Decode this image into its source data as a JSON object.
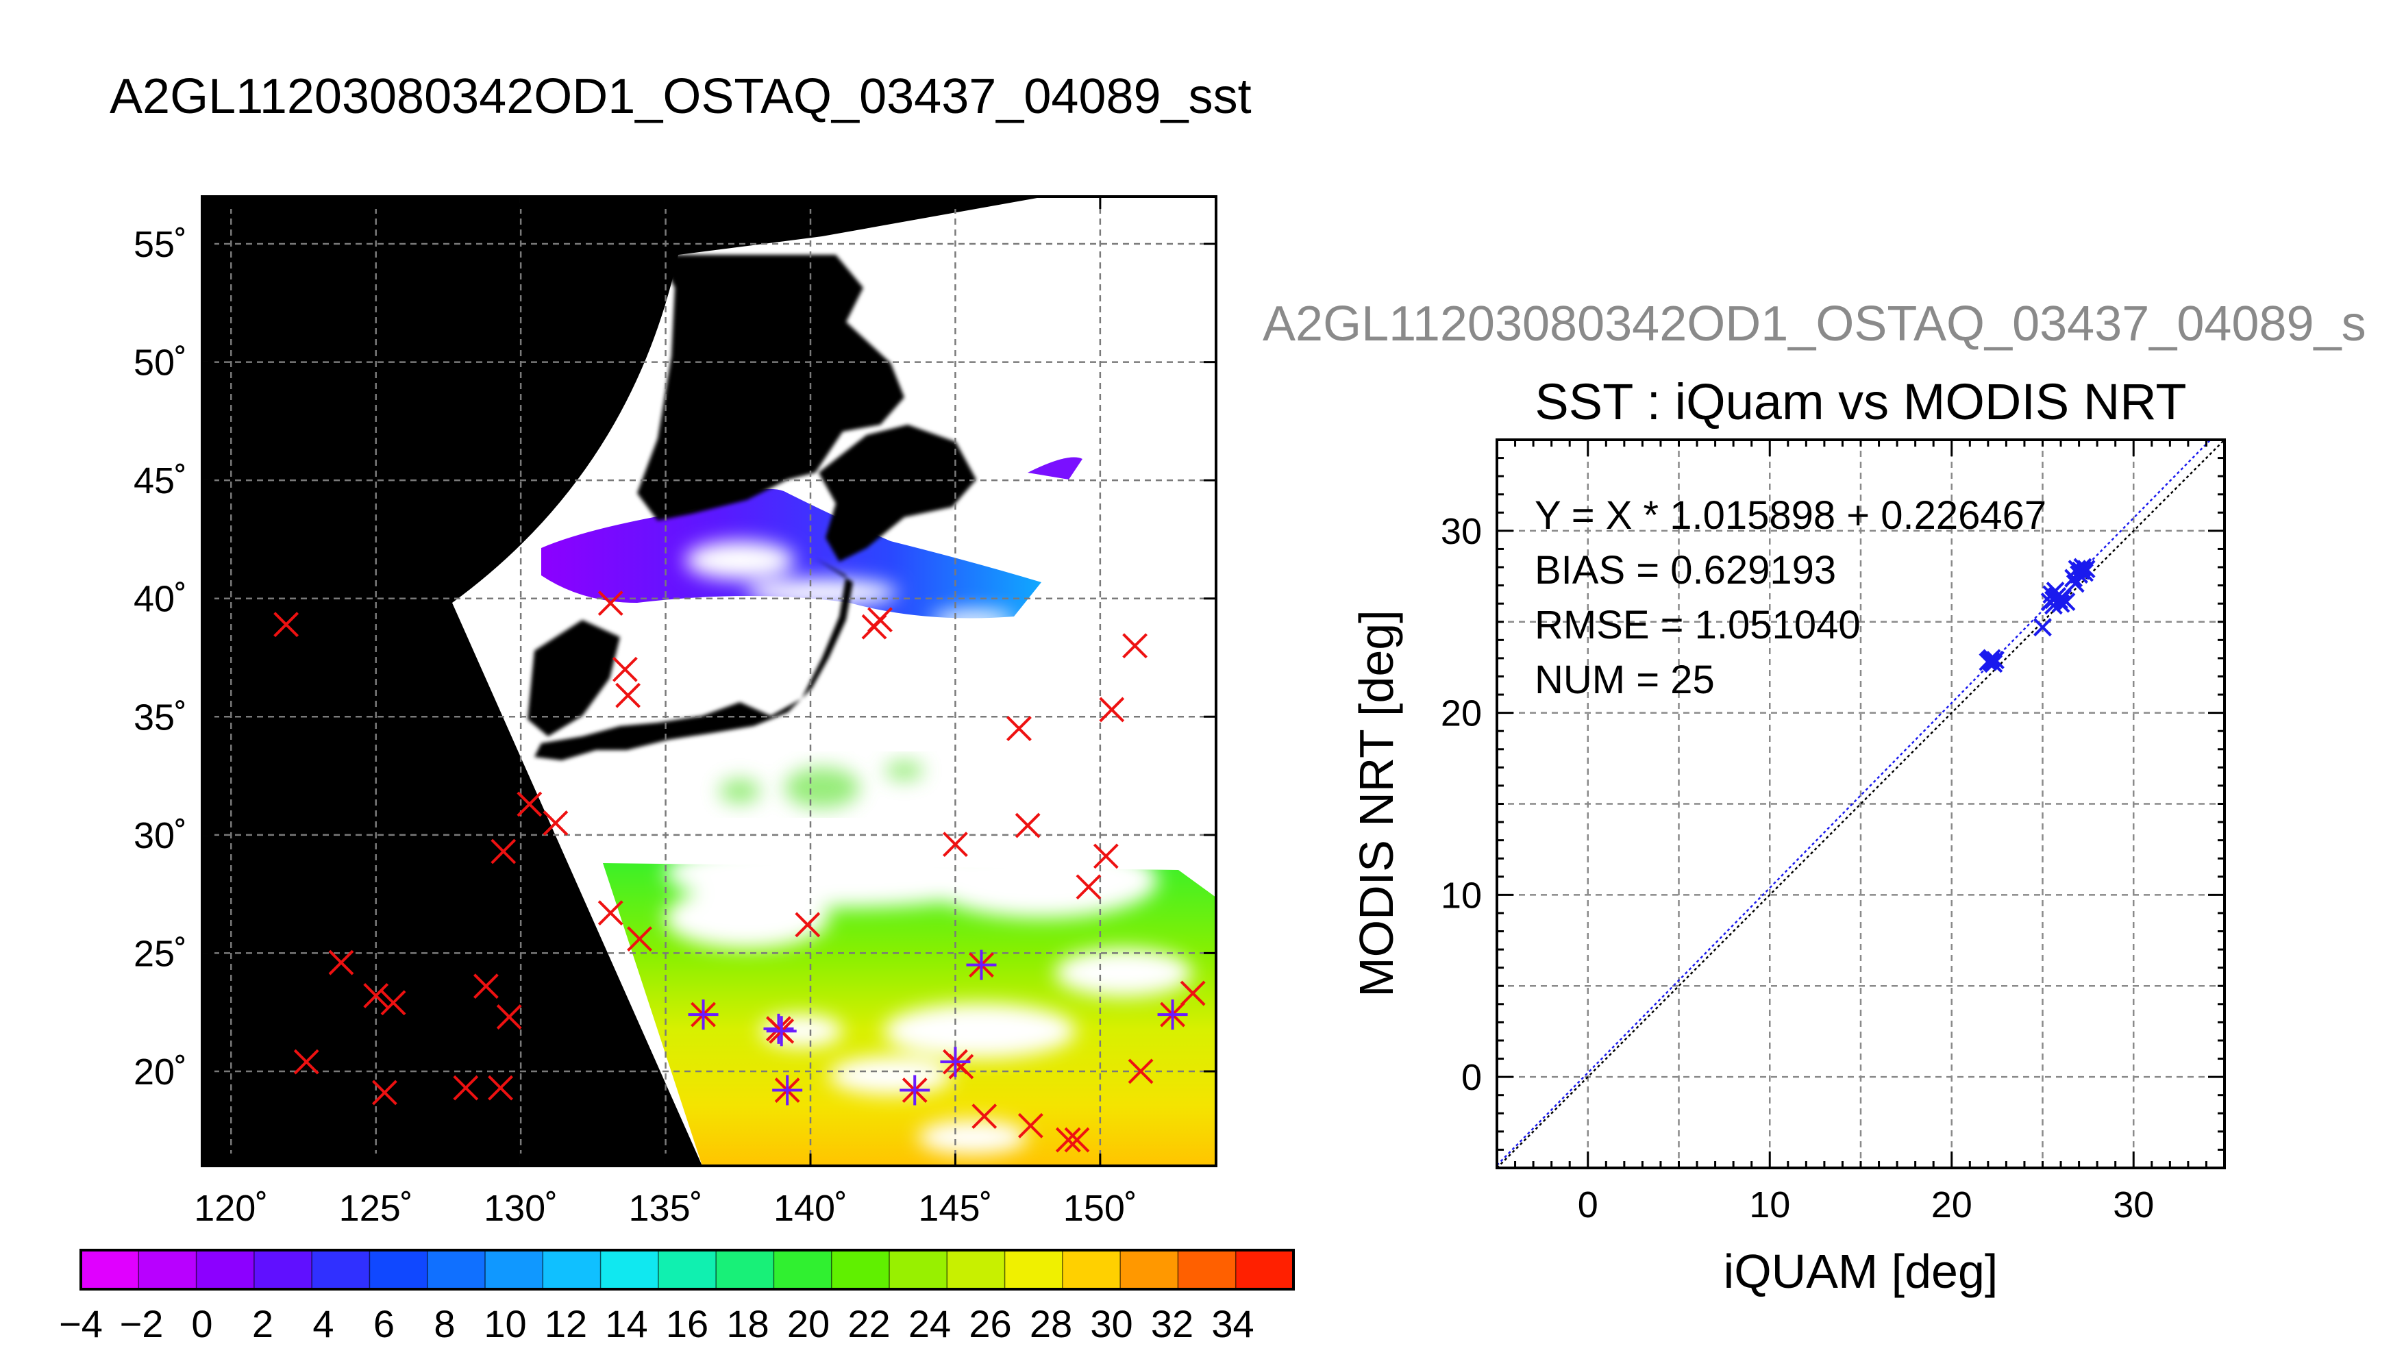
{
  "title": "A2GL11203080342OD1_OSTAQ_03437_04089_sst",
  "map": {
    "lat_ticks": [
      "55˚",
      "50˚",
      "45˚",
      "40˚",
      "35˚",
      "30˚",
      "25˚",
      "20˚"
    ],
    "lon_ticks": [
      "120˚",
      "125˚",
      "130˚",
      "135˚",
      "140˚",
      "145˚",
      "150˚"
    ],
    "lat_range": [
      16,
      57
    ],
    "lon_range": [
      119,
      154
    ],
    "lat_values": [
      55,
      50,
      45,
      40,
      35,
      30,
      25,
      20
    ],
    "lon_values": [
      120,
      125,
      130,
      135,
      140,
      145,
      150
    ],
    "buoys_outside_swath": [
      [
        121.9,
        38.9
      ],
      [
        122.6,
        20.4
      ],
      [
        123.8,
        24.6
      ],
      [
        125.0,
        23.2
      ],
      [
        125.3,
        19.1
      ],
      [
        125.6,
        22.9
      ],
      [
        128.1,
        19.3
      ],
      [
        128.8,
        23.6
      ],
      [
        129.3,
        19.3
      ],
      [
        129.4,
        29.3
      ],
      [
        129.6,
        22.3
      ],
      [
        130.3,
        31.3
      ],
      [
        131.2,
        30.5
      ],
      [
        133.1,
        26.7
      ],
      [
        133.1,
        39.8
      ],
      [
        133.6,
        37.0
      ],
      [
        133.7,
        35.9
      ],
      [
        134.1,
        25.6
      ],
      [
        139.9,
        26.2
      ],
      [
        142.2,
        38.8
      ],
      [
        142.4,
        39.1
      ],
      [
        145.0,
        29.6
      ],
      [
        145.2,
        20.2
      ],
      [
        146.0,
        18.1
      ],
      [
        147.2,
        34.5
      ],
      [
        147.5,
        30.4
      ],
      [
        147.6,
        17.7
      ],
      [
        148.9,
        17.1
      ],
      [
        149.2,
        17.1
      ],
      [
        149.6,
        27.8
      ],
      [
        150.2,
        29.1
      ],
      [
        150.4,
        35.3
      ],
      [
        151.2,
        38.0
      ],
      [
        151.4,
        20.0
      ],
      [
        153.2,
        23.3
      ]
    ],
    "buoys_matched": [
      [
        136.3,
        22.4
      ],
      [
        138.9,
        21.8
      ],
      [
        139.0,
        21.7
      ],
      [
        139.2,
        19.2
      ],
      [
        143.6,
        19.2
      ],
      [
        145.0,
        20.4
      ],
      [
        145.9,
        24.5
      ],
      [
        152.5,
        22.4
      ]
    ]
  },
  "colorbar": {
    "labels": [
      "−4",
      "−2",
      "0",
      "2",
      "4",
      "6",
      "8",
      "10",
      "12",
      "14",
      "16",
      "18",
      "20",
      "22",
      "24",
      "26",
      "28",
      "30",
      "32",
      "34"
    ],
    "min": -4,
    "max": 36,
    "colors": [
      "#e000ff",
      "#b800ff",
      "#8c00ff",
      "#6010ff",
      "#3030ff",
      "#1048ff",
      "#1070ff",
      "#1098ff",
      "#10c0ff",
      "#10e8f0",
      "#10f0b0",
      "#18f078",
      "#30f030",
      "#60f000",
      "#98f000",
      "#c8f000",
      "#f0f000",
      "#ffd000",
      "#ff9800",
      "#ff6000",
      "#ff2000"
    ]
  },
  "scatter": {
    "supertitle": "A2GL11203080342OD1_OSTAQ_03437_04089_s",
    "title": "SST : iQuam vs MODIS NRT",
    "xlabel": "iQUAM [deg]",
    "ylabel": "MODIS NRT [deg]",
    "x_ticks": [
      "0",
      "10",
      "20",
      "30"
    ],
    "y_ticks": [
      "0",
      "10",
      "20",
      "30"
    ],
    "stats": {
      "fit": "Y = X * 1.015898 + 0.226467",
      "bias": "BIAS = 0.629193",
      "rmse": "RMSE = 1.051040",
      "num": "NUM = 25"
    }
  },
  "chart_data": {
    "type": "scatter",
    "title": "SST : iQuam vs MODIS NRT",
    "xlabel": "iQUAM [deg]",
    "ylabel": "MODIS NRT [deg]",
    "xlim": [
      -5,
      35
    ],
    "ylim": [
      -5,
      35
    ],
    "grid": true,
    "regression": {
      "slope": 1.015898,
      "intercept": 0.226467
    },
    "series": [
      {
        "points": [
          [
            22.0,
            22.8
          ],
          [
            22.1,
            22.9
          ],
          [
            22.2,
            22.8
          ],
          [
            22.3,
            22.7
          ],
          [
            22.4,
            22.9
          ],
          [
            25.0,
            24.7
          ],
          [
            25.4,
            26.1
          ],
          [
            25.5,
            26.5
          ],
          [
            25.6,
            26.2
          ],
          [
            25.7,
            26.7
          ],
          [
            25.8,
            26.4
          ],
          [
            25.9,
            26.2
          ],
          [
            26.0,
            26.0
          ],
          [
            26.1,
            26.3
          ],
          [
            26.3,
            26.1
          ],
          [
            26.8,
            27.1
          ],
          [
            26.9,
            27.9
          ],
          [
            27.0,
            27.6
          ],
          [
            27.1,
            27.8
          ],
          [
            27.2,
            28.0
          ],
          [
            27.3,
            27.7
          ],
          [
            27.4,
            27.9
          ],
          [
            26.7,
            27.4
          ],
          [
            25.6,
            25.9
          ],
          [
            22.2,
            23.0
          ]
        ]
      }
    ]
  }
}
